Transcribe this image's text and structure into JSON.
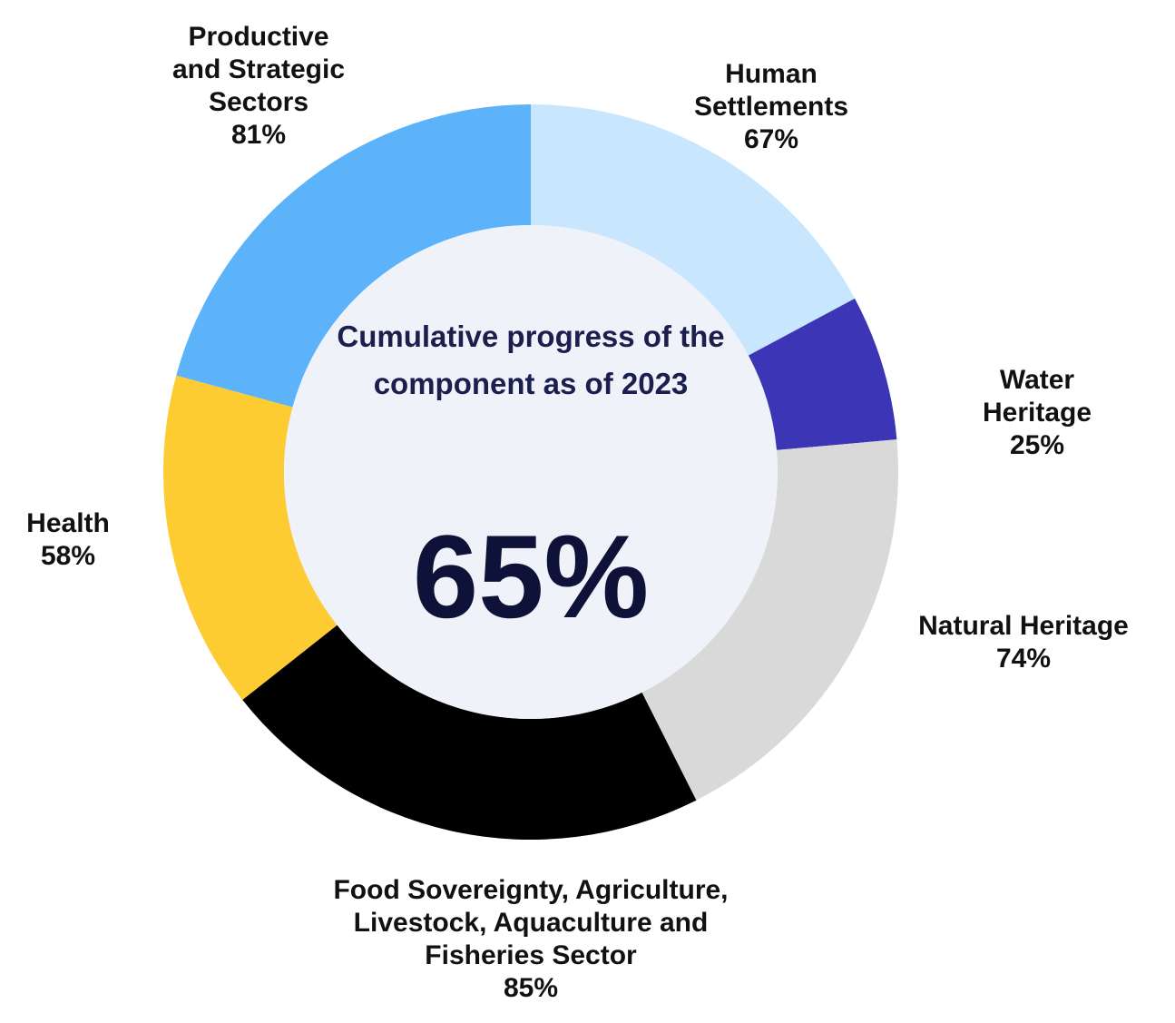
{
  "chart_data": {
    "type": "donut",
    "categories": [
      "Human Settlements",
      "Water Heritage",
      "Natural Heritage",
      "Food Sovereignty, Agriculture, Livestock, Aquaculture and Fisheries Sector",
      "Health",
      "Productive and Strategic Sectors"
    ],
    "values": [
      67,
      25,
      74,
      85,
      58,
      81
    ],
    "value_labels": [
      "67%",
      "25%",
      "74%",
      "85%",
      "58%",
      "81%"
    ],
    "colors": [
      "#c8e6fd",
      "#3c35b5",
      "#d9d9d9",
      "#000000",
      "#fdcc33",
      "#5cb3f9"
    ],
    "center_text": "Cumulative progress of the component as of 2023",
    "center_value_label": "65%"
  }
}
